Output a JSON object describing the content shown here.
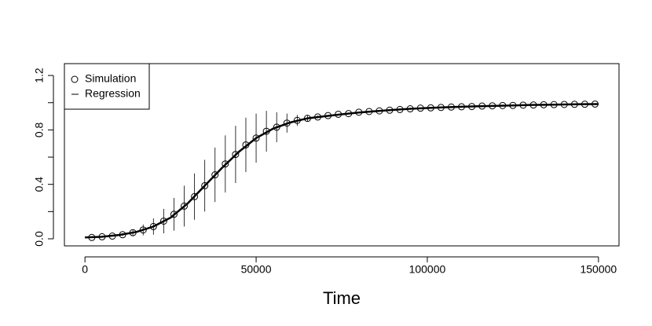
{
  "chart_data": {
    "type": "scatter",
    "x_label": "Time",
    "xlim": [
      -6000,
      156000
    ],
    "xticks": [
      0,
      50000,
      100000,
      150000
    ],
    "ylim": [
      -0.052,
      1.287
    ],
    "yticks": [
      {
        "value": 0,
        "label": "0.0"
      },
      0.4,
      0.8,
      1.2
    ],
    "yminor_ticks": [
      0.2,
      0.6,
      1.0
    ],
    "legend": "top-left",
    "series": [
      {
        "name": "Simulation",
        "color": "#000000",
        "marker": "circle",
        "x": [
          2000,
          5000,
          8000,
          11000,
          14000,
          17000,
          20000,
          23000,
          26000,
          29000,
          32000,
          35000,
          38000,
          41000,
          44000,
          47000,
          50000,
          53000,
          56000,
          59000,
          62000,
          65000,
          68000,
          71000,
          74000,
          77000,
          80000,
          83000,
          86000,
          89000,
          92000,
          95000,
          98000,
          101000,
          104000,
          107000,
          110000,
          113000,
          116000,
          119000,
          122000,
          125000,
          128000,
          131000,
          134000,
          137000,
          140000,
          143000,
          146000,
          149000
        ],
        "values": [
          0.01,
          0.015,
          0.02,
          0.03,
          0.045,
          0.065,
          0.09,
          0.13,
          0.18,
          0.24,
          0.31,
          0.39,
          0.47,
          0.55,
          0.62,
          0.69,
          0.74,
          0.79,
          0.82,
          0.85,
          0.87,
          0.885,
          0.895,
          0.905,
          0.915,
          0.92,
          0.93,
          0.935,
          0.94,
          0.945,
          0.95,
          0.955,
          0.96,
          0.962,
          0.965,
          0.968,
          0.97,
          0.972,
          0.975,
          0.977,
          0.979,
          0.98,
          0.982,
          0.983,
          0.985,
          0.986,
          0.987,
          0.988,
          0.989,
          0.99
        ],
        "errors": [
          0,
          0,
          0,
          0.01,
          0.02,
          0.04,
          0.06,
          0.09,
          0.12,
          0.15,
          0.17,
          0.19,
          0.2,
          0.21,
          0.21,
          0.2,
          0.18,
          0.15,
          0.11,
          0.07,
          0.04,
          0.02,
          0.01,
          0,
          0,
          0,
          0,
          0,
          0,
          0,
          0,
          0,
          0,
          0,
          0,
          0,
          0,
          0,
          0,
          0,
          0,
          0,
          0,
          0,
          0,
          0,
          0,
          0,
          0,
          0
        ]
      },
      {
        "name": "Regression",
        "color": "#000000",
        "marker": "line",
        "x": [
          0,
          5000,
          10000,
          15000,
          20000,
          25000,
          30000,
          35000,
          40000,
          45000,
          50000,
          55000,
          60000,
          65000,
          70000,
          75000,
          80000,
          85000,
          90000,
          95000,
          100000,
          105000,
          110000,
          115000,
          120000,
          125000,
          130000,
          135000,
          140000,
          145000,
          150000
        ],
        "values": [
          0.01,
          0.015,
          0.028,
          0.05,
          0.09,
          0.155,
          0.26,
          0.39,
          0.52,
          0.64,
          0.74,
          0.81,
          0.855,
          0.885,
          0.9,
          0.915,
          0.928,
          0.938,
          0.947,
          0.955,
          0.961,
          0.966,
          0.97,
          0.974,
          0.977,
          0.98,
          0.983,
          0.985,
          0.987,
          0.989,
          0.99
        ]
      }
    ]
  }
}
